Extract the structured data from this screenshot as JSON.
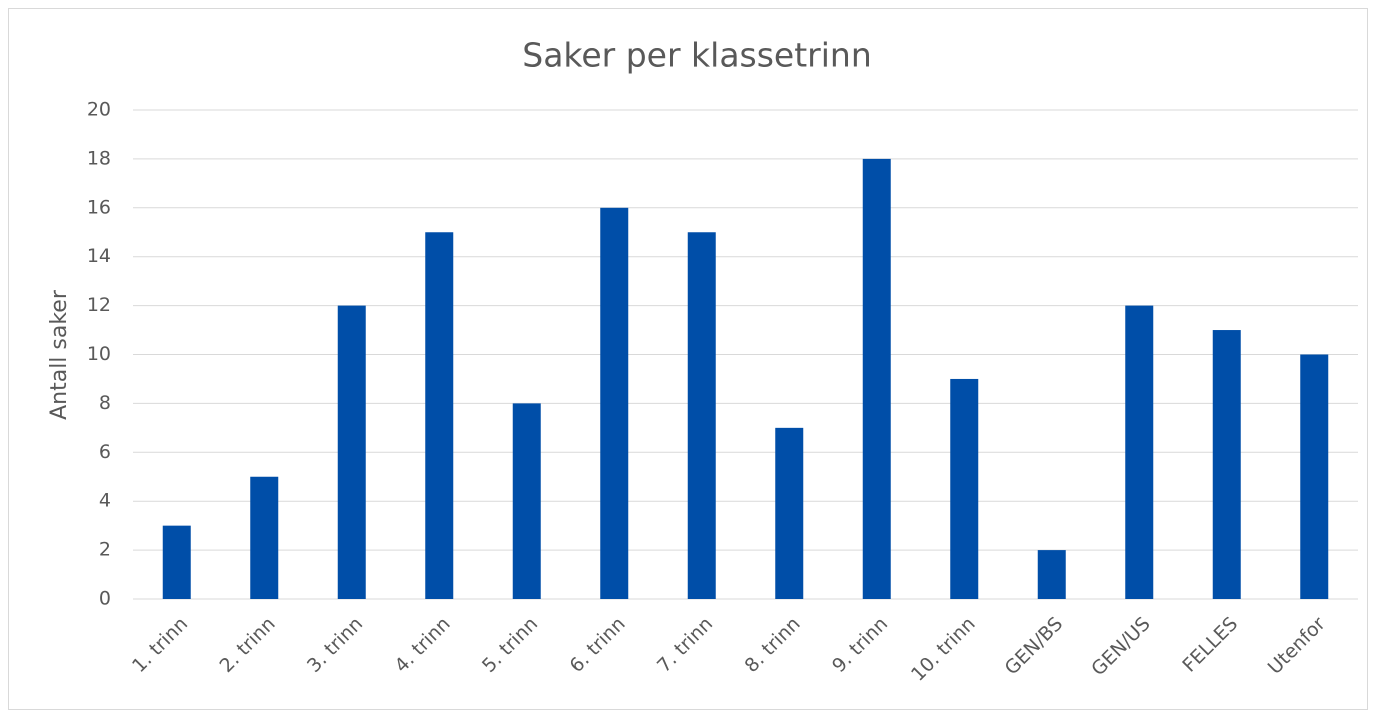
{
  "chart_data": {
    "type": "bar",
    "title": "Saker per klassetrinn",
    "y_label": "Antall saker",
    "categories": [
      "1. trinn",
      "2. trinn",
      "3. trinn",
      "4. trinn",
      "5. trinn",
      "6. trinn",
      "7. trinn",
      "8. trinn",
      "9. trinn",
      "10. trinn",
      "GEN/BS",
      "GEN/US",
      "FELLES",
      "Utenfor"
    ],
    "values": [
      3,
      5,
      12,
      15,
      8,
      16,
      15,
      7,
      18,
      9,
      2,
      12,
      11,
      10
    ],
    "color": "#004ea8",
    "ylim": [
      0,
      20
    ],
    "yticks": [
      0,
      2,
      4,
      6,
      8,
      10,
      12,
      14,
      16,
      18,
      20
    ],
    "grid": true
  }
}
